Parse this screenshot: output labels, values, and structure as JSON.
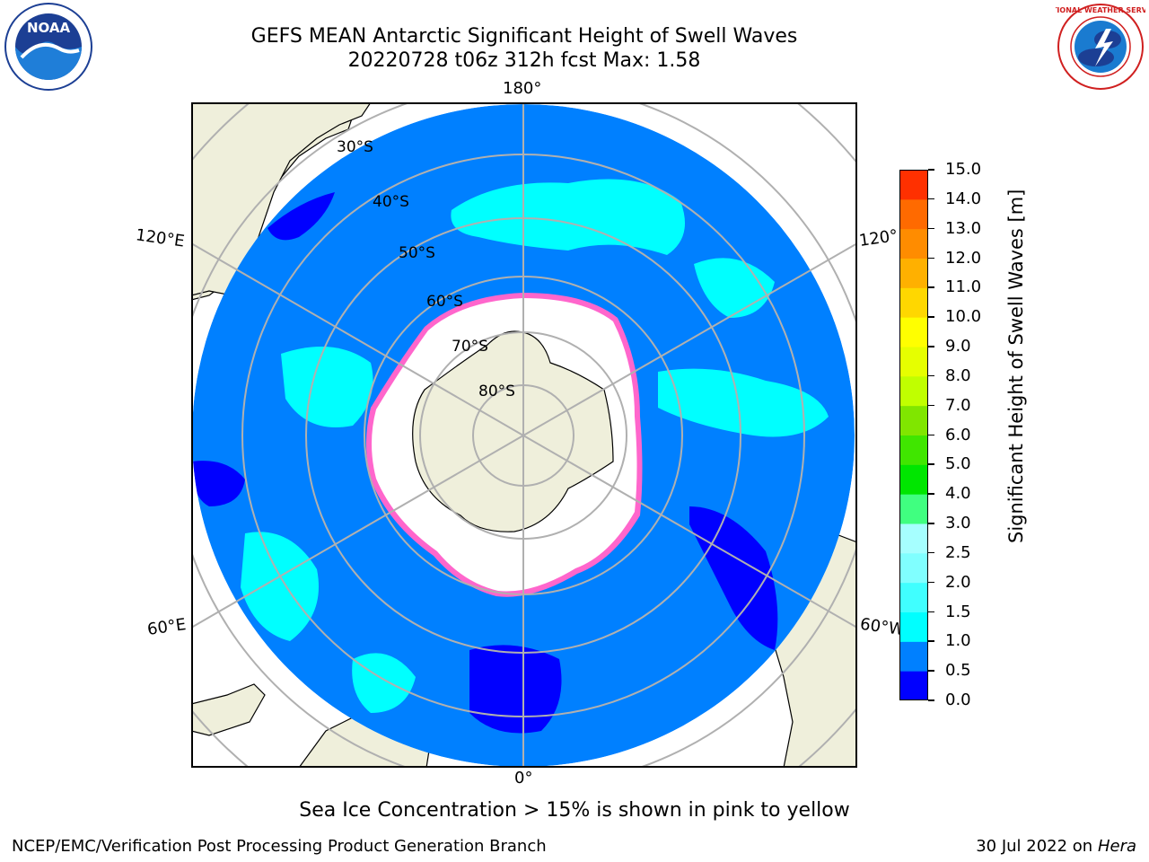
{
  "header": {
    "title_line1": "GEFS MEAN Antarctic Significant Height of Swell Waves",
    "title_line2": "20220728 t06z 312h fcst   Max: 1.58"
  },
  "logos": {
    "left": "NOAA",
    "right": "NATIONAL WEATHER SERVICE"
  },
  "map": {
    "projection": "south-polar-stereographic",
    "ocean_color": "#0080ff",
    "land_color": "#efefdb",
    "ice_color": "#ffffff",
    "longitude_labels": {
      "top": "180°",
      "bottom": "0°",
      "upper_left": "120°E",
      "upper_right": "120°",
      "lower_left": "60°E",
      "lower_right": "60°W"
    },
    "latitude_labels": [
      "30°S",
      "40°S",
      "50°S",
      "60°S",
      "70°S",
      "80°S"
    ]
  },
  "colorbar": {
    "title": "Significant Height of Swell Waves [m]",
    "ticks": [
      "0.0",
      "0.5",
      "1.0",
      "1.5",
      "2.0",
      "2.5",
      "3.0",
      "4.0",
      "5.0",
      "6.0",
      "7.0",
      "8.0",
      "9.0",
      "10.0",
      "11.0",
      "12.0",
      "13.0",
      "14.0",
      "15.0"
    ],
    "colors": [
      "#0000ff",
      "#0080ff",
      "#00ffff",
      "#40ffff",
      "#80ffff",
      "#a6ffff",
      "#40ff80",
      "#00e600",
      "#40e600",
      "#80e600",
      "#c0ff00",
      "#e6ff00",
      "#ffff00",
      "#ffd700",
      "#ffb000",
      "#ff8c00",
      "#ff6a00",
      "#ff3000",
      "#ff0000"
    ]
  },
  "notes": {
    "sea_ice": "Sea Ice Concentration > 15% is shown in pink to yellow",
    "footer_left": "NCEP/EMC/Verification Post Processing Product Generation Branch",
    "footer_right_prefix": "30 Jul 2022 on",
    "footer_right_machine": "Hera"
  }
}
